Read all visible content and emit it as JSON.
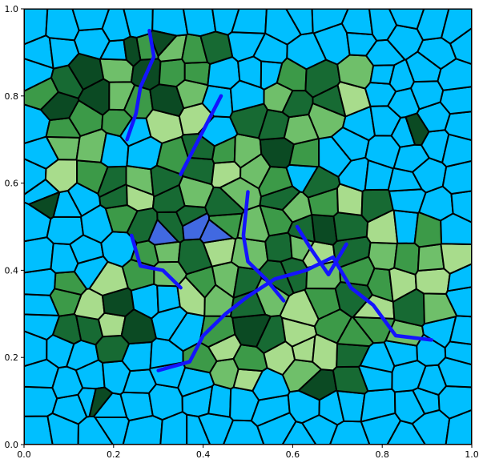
{
  "chart_data": {
    "type": "voronoi-map",
    "title": "",
    "xlabel": "",
    "ylabel": "",
    "xlim": [
      0.0,
      1.0
    ],
    "ylim": [
      0.0,
      1.0
    ],
    "x_ticks": [
      "0.0",
      "0.2",
      "0.4",
      "0.6",
      "0.8",
      "1.0"
    ],
    "y_ticks": [
      "0.0",
      "0.2",
      "0.4",
      "0.6",
      "0.8",
      "1.0"
    ],
    "grid": false,
    "legend": "none",
    "colors": {
      "water": "#00BFFF",
      "lowland": "#A8DC8C",
      "hill": "#6FBF6A",
      "forest": "#3C9A48",
      "deep_forest": "#176A33",
      "peak": "#0B4A23",
      "lake": "#4169E1",
      "river": "#1414FF",
      "cell_border": "#000000"
    },
    "land_region_sample_points": [
      [
        0.28,
        0.83
      ],
      [
        0.34,
        0.73
      ],
      [
        0.4,
        0.6
      ],
      [
        0.38,
        0.48
      ],
      [
        0.45,
        0.4
      ],
      [
        0.52,
        0.42
      ],
      [
        0.6,
        0.35
      ],
      [
        0.55,
        0.28
      ],
      [
        0.48,
        0.2
      ],
      [
        0.63,
        0.18
      ],
      [
        0.7,
        0.22
      ],
      [
        0.78,
        0.28
      ],
      [
        0.85,
        0.35
      ],
      [
        0.9,
        0.42
      ],
      [
        0.75,
        0.48
      ],
      [
        0.6,
        0.45
      ],
      [
        0.65,
        0.52
      ],
      [
        0.2,
        0.3
      ],
      [
        0.12,
        0.32
      ],
      [
        0.15,
        0.75
      ],
      [
        0.1,
        0.65
      ],
      [
        0.62,
        0.78
      ],
      [
        0.7,
        0.82
      ],
      [
        0.55,
        0.68
      ],
      [
        0.35,
        0.88
      ],
      [
        0.25,
        0.55
      ],
      [
        0.3,
        0.45
      ],
      [
        0.4,
        0.35
      ],
      [
        0.5,
        0.3
      ],
      [
        0.08,
        0.8
      ]
    ],
    "lake_cells": [
      [
        0.375,
        0.505
      ],
      [
        0.31,
        0.48
      ],
      [
        0.43,
        0.48
      ]
    ],
    "peak_cells": [
      [
        0.87,
        0.72
      ],
      [
        0.05,
        0.56
      ],
      [
        0.16,
        0.1
      ],
      [
        0.24,
        0.9
      ],
      [
        0.31,
        0.92
      ]
    ],
    "river_paths": [
      [
        [
          0.28,
          0.95
        ],
        [
          0.29,
          0.89
        ],
        [
          0.26,
          0.82
        ],
        [
          0.25,
          0.76
        ],
        [
          0.23,
          0.7
        ]
      ],
      [
        [
          0.44,
          0.8
        ],
        [
          0.41,
          0.74
        ],
        [
          0.38,
          0.68
        ],
        [
          0.35,
          0.62
        ]
      ],
      [
        [
          0.5,
          0.58
        ],
        [
          0.49,
          0.48
        ],
        [
          0.5,
          0.42
        ],
        [
          0.54,
          0.38
        ],
        [
          0.58,
          0.33
        ]
      ],
      [
        [
          0.3,
          0.17
        ],
        [
          0.37,
          0.19
        ],
        [
          0.4,
          0.25
        ],
        [
          0.45,
          0.3
        ],
        [
          0.5,
          0.34
        ],
        [
          0.56,
          0.38
        ],
        [
          0.63,
          0.4
        ],
        [
          0.69,
          0.43
        ],
        [
          0.73,
          0.36
        ],
        [
          0.78,
          0.32
        ],
        [
          0.83,
          0.25
        ],
        [
          0.91,
          0.24
        ]
      ],
      [
        [
          0.24,
          0.48
        ],
        [
          0.26,
          0.41
        ],
        [
          0.31,
          0.4
        ],
        [
          0.35,
          0.36
        ]
      ],
      [
        [
          0.61,
          0.5
        ],
        [
          0.64,
          0.45
        ],
        [
          0.68,
          0.39
        ],
        [
          0.72,
          0.46
        ]
      ]
    ]
  }
}
